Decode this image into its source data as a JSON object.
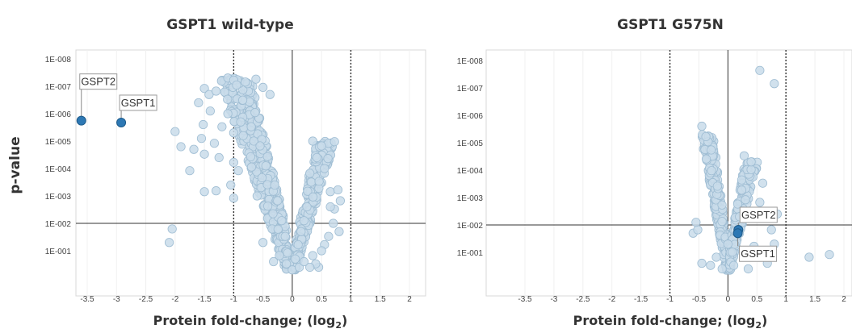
{
  "y_axis_title": "p-value",
  "chart_data": [
    {
      "type": "scatter",
      "title": "GSPT1 wild-type",
      "xlabel": "Protein fold-change; (log",
      "xlabel_sub": "2",
      "xlabel_end": ")",
      "xlim": [
        -3.75,
        2.25
      ],
      "x_ticks": [
        "-3.5",
        "-3",
        "-2.5",
        "-2",
        "-1.5",
        "-1",
        "-0.5",
        "0",
        "0.5",
        "1",
        "1.5",
        "2"
      ],
      "y_scale": "log",
      "y_ticks": [
        "1E-008",
        "1E-007",
        "1E-006",
        "1E-005",
        "1E-004",
        "1E-003",
        "1E-002",
        "1E-001"
      ],
      "threshold_p": 0.01,
      "fold_lines": [
        -1,
        1
      ],
      "highlighted": [
        {
          "label": "GSPT2",
          "x": -3.6,
          "p": 1.8e-06
        },
        {
          "label": "GSPT1",
          "x": -2.92,
          "p": 2.1e-06
        }
      ],
      "series": [
        {
          "x": -1.5,
          "p": 1.2e-07
        },
        {
          "x": -1.42,
          "p": 2e-07
        },
        {
          "x": -1.3,
          "p": 1.5e-07
        },
        {
          "x": -1.1,
          "p": 5e-08
        },
        {
          "x": -1.0,
          "p": 6e-08
        },
        {
          "x": -0.95,
          "p": 9e-08
        },
        {
          "x": -0.8,
          "p": 7e-08
        },
        {
          "x": -0.62,
          "p": 5.5e-08
        },
        {
          "x": -0.5,
          "p": 1.1e-07
        },
        {
          "x": -0.38,
          "p": 2e-07
        },
        {
          "x": -1.6,
          "p": 4e-07
        },
        {
          "x": -1.52,
          "p": 2.5e-06
        },
        {
          "x": -1.4,
          "p": 8e-07
        },
        {
          "x": -1.2,
          "p": 3e-06
        },
        {
          "x": -1.1,
          "p": 1e-06
        },
        {
          "x": -1.0,
          "p": 5e-06
        },
        {
          "x": -0.88,
          "p": 2e-06
        },
        {
          "x": -1.68,
          "p": 2e-05
        },
        {
          "x": -1.55,
          "p": 8e-06
        },
        {
          "x": -1.33,
          "p": 1.2e-05
        },
        {
          "x": -1.25,
          "p": 4e-05
        },
        {
          "x": -1.9,
          "p": 1.6e-05
        },
        {
          "x": -1.5,
          "p": 3e-05
        },
        {
          "x": -1.75,
          "p": 0.00012
        },
        {
          "x": -1.0,
          "p": 6e-05
        },
        {
          "x": -0.92,
          "p": 0.00012
        },
        {
          "x": -1.5,
          "p": 0.0007
        },
        {
          "x": -1.3,
          "p": 0.00065
        },
        {
          "x": -1.05,
          "p": 0.0004
        },
        {
          "x": -1.0,
          "p": 0.0012
        },
        {
          "x": -2.0,
          "p": 4.5e-06
        },
        {
          "x": -2.05,
          "p": 0.016
        },
        {
          "x": -2.1,
          "p": 0.05
        },
        {
          "x": -0.3,
          "p": 0.0004
        },
        {
          "x": -0.25,
          "p": 0.0015
        },
        {
          "x": -0.18,
          "p": 0.008
        },
        {
          "x": -0.12,
          "p": 0.03
        },
        {
          "x": -0.08,
          "p": 0.12
        },
        {
          "x": -0.05,
          "p": 0.3
        },
        {
          "x": 0.0,
          "p": 0.5
        },
        {
          "x": 0.05,
          "p": 0.2
        },
        {
          "x": 0.1,
          "p": 0.06
        },
        {
          "x": 0.15,
          "p": 0.02
        },
        {
          "x": 0.2,
          "p": 0.008
        },
        {
          "x": 0.25,
          "p": 0.0025
        },
        {
          "x": 0.3,
          "p": 0.00015
        },
        {
          "x": 0.35,
          "p": 1e-05
        },
        {
          "x": 0.42,
          "p": 4e-05
        },
        {
          "x": 0.5,
          "p": 1.5e-05
        },
        {
          "x": 0.55,
          "p": 0.0001
        },
        {
          "x": 0.65,
          "p": 0.0007
        },
        {
          "x": 0.72,
          "p": 0.003
        },
        {
          "x": 0.8,
          "p": 0.02
        },
        {
          "x": 0.62,
          "p": 0.03
        },
        {
          "x": 0.55,
          "p": 0.06
        },
        {
          "x": 0.5,
          "p": 0.1
        },
        {
          "x": 0.45,
          "p": 0.4
        },
        {
          "x": 0.82,
          "p": 0.0015
        },
        {
          "x": 0.65,
          "p": 0.0025
        },
        {
          "x": 0.78,
          "p": 0.0006
        },
        {
          "x": 0.4,
          "p": 0.3
        },
        {
          "x": 0.3,
          "p": 0.4
        },
        {
          "x": -0.7,
          "p": 3e-06
        },
        {
          "x": -0.55,
          "p": 1.5e-05
        },
        {
          "x": -0.45,
          "p": 8e-05
        },
        {
          "x": -0.6,
          "p": 0.001
        },
        {
          "x": -0.5,
          "p": 0.05
        },
        {
          "x": -0.32,
          "p": 0.25
        },
        {
          "x": -0.1,
          "p": 0.3
        },
        {
          "x": -0.22,
          "p": 0.15
        },
        {
          "x": 0.12,
          "p": 0.4
        },
        {
          "x": 0.2,
          "p": 0.25
        },
        {
          "x": 0.35,
          "p": 0.15
        },
        {
          "x": 0.7,
          "p": 0.01
        }
      ],
      "cloud": {
        "left": {
          "count": 520,
          "x_min": -1.2,
          "x_max": -0.1,
          "p_min": 5e-08,
          "p_max": 0.5
        },
        "right": {
          "count": 260,
          "x_min": 0.05,
          "x_max": 0.7,
          "p_min": 1e-05,
          "p_max": 0.5
        }
      }
    },
    {
      "type": "scatter",
      "title": "GSPT1 G575N",
      "xlabel": "Protein fold-change; (log",
      "xlabel_sub": "2",
      "xlabel_end": ")",
      "xlim": [
        -3.75,
        2.25
      ],
      "x_ticks": [
        "-3.5",
        "-3",
        "-2.5",
        "-2",
        "-1.5",
        "-1",
        "-0.5",
        "0",
        "0.5",
        "1",
        "1.5",
        "2"
      ],
      "y_scale": "log",
      "y_ticks": [
        "1E-008",
        "1E-007",
        "1E-006",
        "1E-005",
        "1E-004",
        "1E-003",
        "1E-002",
        "1E-001"
      ],
      "threshold_p": 0.01,
      "fold_lines": [
        -1,
        1
      ],
      "highlighted": [
        {
          "label": "GSPT2",
          "x": 0.18,
          "p": 0.015
        },
        {
          "label": "GSPT1",
          "x": 0.17,
          "p": 0.02
        }
      ],
      "series": [
        {
          "x": 0.55,
          "p": 2.3e-08
        },
        {
          "x": 0.8,
          "p": 7e-08
        },
        {
          "x": -0.45,
          "p": 2.5e-06
        },
        {
          "x": -0.38,
          "p": 6e-06
        },
        {
          "x": -0.6,
          "p": 0.02
        },
        {
          "x": -0.52,
          "p": 0.015
        },
        {
          "x": -0.45,
          "p": 0.25
        },
        {
          "x": -0.3,
          "p": 0.3
        },
        {
          "x": -0.1,
          "p": 0.4
        },
        {
          "x": 0.1,
          "p": 0.3
        },
        {
          "x": 0.3,
          "p": 0.1
        },
        {
          "x": 0.45,
          "p": 0.06
        },
        {
          "x": 0.35,
          "p": 0.4
        },
        {
          "x": 0.6,
          "p": 0.0003
        },
        {
          "x": 0.55,
          "p": 0.0015
        },
        {
          "x": 0.7,
          "p": 0.004
        },
        {
          "x": 0.75,
          "p": 0.015
        },
        {
          "x": 0.8,
          "p": 0.05
        },
        {
          "x": 0.68,
          "p": 0.25
        },
        {
          "x": 0.85,
          "p": 0.004
        },
        {
          "x": 1.4,
          "p": 0.15
        },
        {
          "x": 1.75,
          "p": 0.12
        },
        {
          "x": -0.55,
          "p": 0.008
        },
        {
          "x": 0.4,
          "p": 5e-05
        },
        {
          "x": 0.28,
          "p": 3e-05
        },
        {
          "x": 0.2,
          "p": 0.005
        },
        {
          "x": 0.0,
          "p": 0.05
        },
        {
          "x": -0.2,
          "p": 0.15
        }
      ],
      "cloud": {
        "left": {
          "count": 260,
          "x_min": -0.45,
          "x_max": -0.02,
          "p_min": 5e-06,
          "p_max": 0.5
        },
        "right": {
          "count": 170,
          "x_min": 0.03,
          "x_max": 0.5,
          "p_min": 5e-05,
          "p_max": 0.5
        }
      }
    }
  ]
}
